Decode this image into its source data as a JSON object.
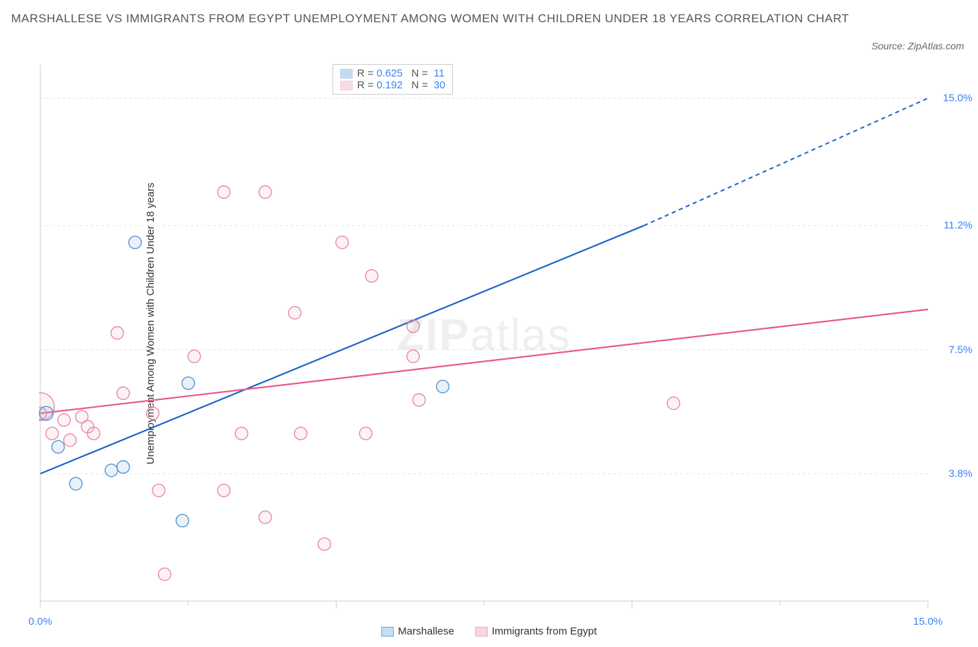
{
  "title": "MARSHALLESE VS IMMIGRANTS FROM EGYPT UNEMPLOYMENT AMONG WOMEN WITH CHILDREN UNDER 18 YEARS CORRELATION CHART",
  "source_label": "Source: ZipAtlas.com",
  "y_axis_label": "Unemployment Among Women with Children Under 18 years",
  "watermark": {
    "part1": "ZIP",
    "part2": "atlas"
  },
  "chart": {
    "type": "scatter",
    "xlim": [
      0,
      15
    ],
    "ylim": [
      0,
      16
    ],
    "background_color": "#ffffff",
    "grid_color": "#e5e5e5",
    "axis_line_color": "#cccccc",
    "tick_color": "#cccccc",
    "y_ticks": [
      {
        "value": 3.8,
        "label": "3.8%"
      },
      {
        "value": 7.5,
        "label": "7.5%"
      },
      {
        "value": 11.2,
        "label": "11.2%"
      },
      {
        "value": 15.0,
        "label": "15.0%"
      }
    ],
    "x_ticks_major": [
      0,
      5,
      10,
      15
    ],
    "x_tick_minor_step": 2.5,
    "x_labels": [
      {
        "value": 0,
        "label": "0.0%"
      },
      {
        "value": 15,
        "label": "15.0%"
      }
    ],
    "marker_radius": 9,
    "marker_fill_opacity": 0.15,
    "marker_stroke_width": 1.4,
    "series": [
      {
        "name": "Marshallese",
        "color": "#6ea8e0",
        "stroke": "#5b94cf",
        "trend_color": "#1f64c8",
        "trend": {
          "x1": 0,
          "y1": 3.8,
          "x2": 10.2,
          "y2": 11.2,
          "extend_dashed_to_x": 15,
          "extend_dashed_to_y": 15.0
        },
        "stats": {
          "R": "0.625",
          "N": "11"
        },
        "points": [
          {
            "x": 0.1,
            "y": 5.6,
            "r": 10
          },
          {
            "x": 0.3,
            "y": 4.6,
            "r": 9
          },
          {
            "x": 0.6,
            "y": 3.5,
            "r": 9
          },
          {
            "x": 1.2,
            "y": 3.9,
            "r": 9
          },
          {
            "x": 1.4,
            "y": 4.0,
            "r": 9
          },
          {
            "x": 1.6,
            "y": 10.7,
            "r": 9
          },
          {
            "x": 2.4,
            "y": 2.4,
            "r": 9
          },
          {
            "x": 2.5,
            "y": 6.5,
            "r": 9
          },
          {
            "x": 6.8,
            "y": 6.4,
            "r": 9
          }
        ]
      },
      {
        "name": "Immigrants from Egypt",
        "color": "#f2a8bd",
        "stroke": "#e68aa5",
        "trend_color": "#e75a8b",
        "trend": {
          "x1": 0,
          "y1": 5.6,
          "x2": 15,
          "y2": 8.7
        },
        "stats": {
          "R": "0.192",
          "N": "30"
        },
        "points": [
          {
            "x": 0.0,
            "y": 5.8,
            "r": 20
          },
          {
            "x": 0.0,
            "y": 5.6,
            "r": 9
          },
          {
            "x": 0.2,
            "y": 5.0,
            "r": 9
          },
          {
            "x": 0.4,
            "y": 5.4,
            "r": 9
          },
          {
            "x": 0.5,
            "y": 4.8,
            "r": 9
          },
          {
            "x": 0.7,
            "y": 5.5,
            "r": 9
          },
          {
            "x": 0.8,
            "y": 5.2,
            "r": 9
          },
          {
            "x": 0.9,
            "y": 5.0,
            "r": 9
          },
          {
            "x": 1.3,
            "y": 8.0,
            "r": 9
          },
          {
            "x": 1.4,
            "y": 6.2,
            "r": 9
          },
          {
            "x": 1.9,
            "y": 5.6,
            "r": 9
          },
          {
            "x": 2.0,
            "y": 3.3,
            "r": 9
          },
          {
            "x": 2.1,
            "y": 0.8,
            "r": 9
          },
          {
            "x": 2.6,
            "y": 7.3,
            "r": 9
          },
          {
            "x": 3.1,
            "y": 3.3,
            "r": 9
          },
          {
            "x": 3.1,
            "y": 12.2,
            "r": 9
          },
          {
            "x": 3.4,
            "y": 5.0,
            "r": 9
          },
          {
            "x": 3.8,
            "y": 12.2,
            "r": 9
          },
          {
            "x": 3.8,
            "y": 2.5,
            "r": 9
          },
          {
            "x": 4.3,
            "y": 8.6,
            "r": 9
          },
          {
            "x": 4.4,
            "y": 5.0,
            "r": 9
          },
          {
            "x": 4.8,
            "y": 1.7,
            "r": 9
          },
          {
            "x": 5.1,
            "y": 10.7,
            "r": 9
          },
          {
            "x": 5.6,
            "y": 9.7,
            "r": 9
          },
          {
            "x": 5.5,
            "y": 5.0,
            "r": 9
          },
          {
            "x": 6.3,
            "y": 8.2,
            "r": 9
          },
          {
            "x": 6.3,
            "y": 7.3,
            "r": 9
          },
          {
            "x": 6.4,
            "y": 6.0,
            "r": 9
          },
          {
            "x": 10.7,
            "y": 5.9,
            "r": 9
          }
        ]
      }
    ]
  },
  "stats_box": {
    "label_R": "R =",
    "label_N": "N =",
    "value_color": "#3b82f6",
    "label_color": "#555555"
  },
  "legend": {
    "items": [
      {
        "label": "Marshallese",
        "fill": "#c7ddf2",
        "stroke": "#6ea8e0"
      },
      {
        "label": "Immigrants from Egypt",
        "fill": "#fad5e0",
        "stroke": "#f2a8bd"
      }
    ]
  }
}
